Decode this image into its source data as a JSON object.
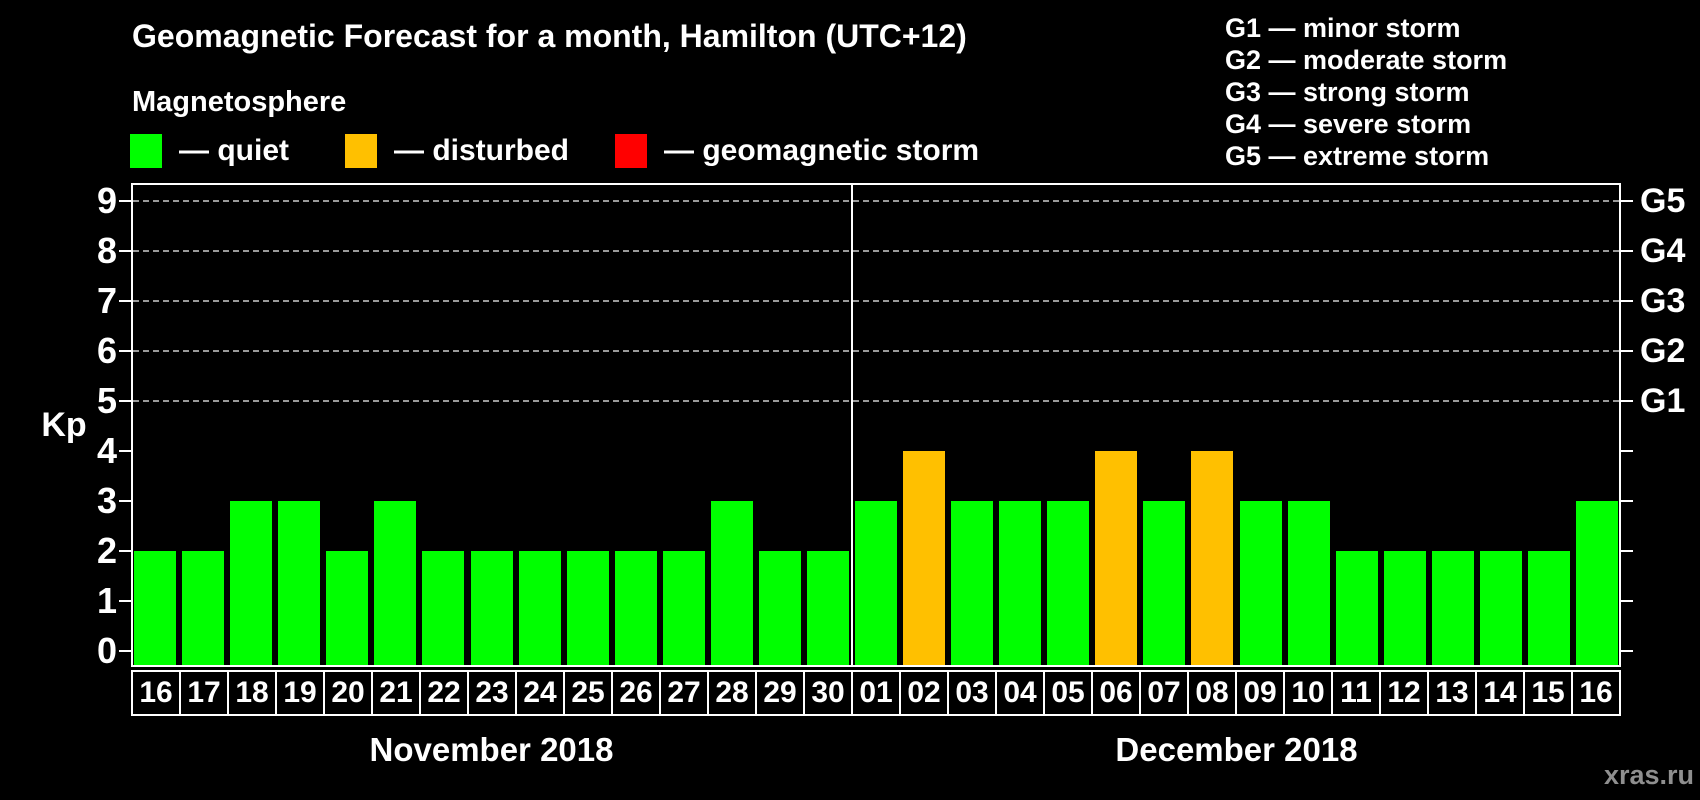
{
  "title": "Geomagnetic Forecast for a month, Hamilton (UTC+12)",
  "subtitle": "Magnetosphere",
  "legend": {
    "items": [
      {
        "name": "quiet",
        "label": "— quiet",
        "color": "#00FF00"
      },
      {
        "name": "disturbed",
        "label": "— disturbed",
        "color": "#FFC000"
      },
      {
        "name": "storm",
        "label": "— geomagnetic storm",
        "color": "#FF0000"
      }
    ]
  },
  "g_scale_legend": [
    "G1 — minor storm",
    "G2 — moderate storm",
    "G3 — strong storm",
    "G4 — severe storm",
    "G5 — extreme storm"
  ],
  "watermark": "xras.ru",
  "chart_data": {
    "type": "bar",
    "title": "Geomagnetic Forecast for a month, Hamilton (UTC+12)",
    "ylabel": "Kp",
    "ylim": [
      0,
      9
    ],
    "yticks": [
      0,
      1,
      2,
      3,
      4,
      5,
      6,
      7,
      8,
      9
    ],
    "gridlines_at_kp": [
      5,
      6,
      7,
      8,
      9
    ],
    "grid_style": "dashed",
    "legend_position": "top-left",
    "right_axis": [
      {
        "kp": 5,
        "label": "G1"
      },
      {
        "kp": 6,
        "label": "G2"
      },
      {
        "kp": 7,
        "label": "G3"
      },
      {
        "kp": 8,
        "label": "G4"
      },
      {
        "kp": 9,
        "label": "G5"
      }
    ],
    "status_colors": {
      "quiet": "#00FF00",
      "disturbed": "#FFC000",
      "storm": "#FF0000"
    },
    "months": [
      {
        "label": "November 2018",
        "days": [
          "16",
          "17",
          "18",
          "19",
          "20",
          "21",
          "22",
          "23",
          "24",
          "25",
          "26",
          "27",
          "28",
          "29",
          "30"
        ],
        "kp_values": [
          2,
          2,
          3,
          3,
          2,
          3,
          2,
          2,
          2,
          2,
          2,
          2,
          3,
          2,
          2
        ],
        "statuses": [
          "quiet",
          "quiet",
          "quiet",
          "quiet",
          "quiet",
          "quiet",
          "quiet",
          "quiet",
          "quiet",
          "quiet",
          "quiet",
          "quiet",
          "quiet",
          "quiet",
          "quiet"
        ]
      },
      {
        "label": "December 2018",
        "days": [
          "01",
          "02",
          "03",
          "04",
          "05",
          "06",
          "07",
          "08",
          "09",
          "10",
          "11",
          "12",
          "13",
          "14",
          "15",
          "16"
        ],
        "kp_values": [
          3,
          4,
          3,
          3,
          3,
          4,
          3,
          4,
          3,
          3,
          2,
          2,
          2,
          2,
          2,
          3
        ],
        "statuses": [
          "quiet",
          "disturbed",
          "quiet",
          "quiet",
          "quiet",
          "disturbed",
          "quiet",
          "disturbed",
          "quiet",
          "quiet",
          "quiet",
          "quiet",
          "quiet",
          "quiet",
          "quiet",
          "quiet"
        ]
      }
    ]
  }
}
